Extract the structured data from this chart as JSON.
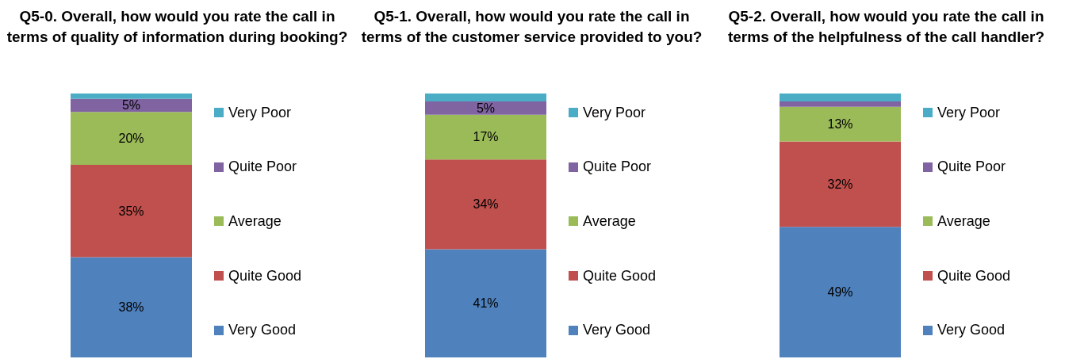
{
  "chart_data": [
    {
      "type": "bar",
      "stacked": true,
      "title": "Q5-0. Overall, how would you rate the call in terms of quality of information during booking?",
      "categories": [
        null
      ],
      "tick_labels": false,
      "legend": "right",
      "series": [
        {
          "name": "Very Good",
          "color": "#4f81bd",
          "values": [
            38
          ],
          "value_labels": [
            "38%"
          ]
        },
        {
          "name": "Quite Good",
          "color": "#c0504d",
          "values": [
            35
          ],
          "value_labels": [
            "35%"
          ]
        },
        {
          "name": "Average",
          "color": "#9bbb59",
          "values": [
            20
          ],
          "value_labels": [
            "20%"
          ]
        },
        {
          "name": "Quite Poor",
          "color": "#8064a2",
          "values": [
            5
          ],
          "value_labels": [
            "5%"
          ]
        },
        {
          "name": "Very Poor",
          "color": "#4bacc6",
          "values": [
            2
          ],
          "value_labels": [
            null
          ]
        }
      ]
    },
    {
      "type": "bar",
      "stacked": true,
      "title": "Q5-1. Overall, how would you rate the call in terms of the customer service provided to you?",
      "categories": [
        null
      ],
      "tick_labels": false,
      "legend": "right",
      "series": [
        {
          "name": "Very Good",
          "color": "#4f81bd",
          "values": [
            41
          ],
          "value_labels": [
            "41%"
          ]
        },
        {
          "name": "Quite Good",
          "color": "#c0504d",
          "values": [
            34
          ],
          "value_labels": [
            "34%"
          ]
        },
        {
          "name": "Average",
          "color": "#9bbb59",
          "values": [
            17
          ],
          "value_labels": [
            "17%"
          ]
        },
        {
          "name": "Quite Poor",
          "color": "#8064a2",
          "values": [
            5
          ],
          "value_labels": [
            "5%"
          ]
        },
        {
          "name": "Very Poor",
          "color": "#4bacc6",
          "values": [
            3
          ],
          "value_labels": [
            null
          ]
        }
      ]
    },
    {
      "type": "bar",
      "stacked": true,
      "title": "Q5-2. Overall, how would you rate the call in terms of the helpfulness of the call handler?",
      "categories": [
        null
      ],
      "tick_labels": false,
      "legend": "right",
      "series": [
        {
          "name": "Very Good",
          "color": "#4f81bd",
          "values": [
            49
          ],
          "value_labels": [
            "49%"
          ]
        },
        {
          "name": "Quite Good",
          "color": "#c0504d",
          "values": [
            32
          ],
          "value_labels": [
            "32%"
          ]
        },
        {
          "name": "Average",
          "color": "#9bbb59",
          "values": [
            13
          ],
          "value_labels": [
            "13%"
          ]
        },
        {
          "name": "Quite Poor",
          "color": "#8064a2",
          "values": [
            2
          ],
          "value_labels": [
            null
          ]
        },
        {
          "name": "Very Poor",
          "color": "#4bacc6",
          "values": [
            3
          ],
          "value_labels": [
            null
          ]
        }
      ]
    }
  ]
}
